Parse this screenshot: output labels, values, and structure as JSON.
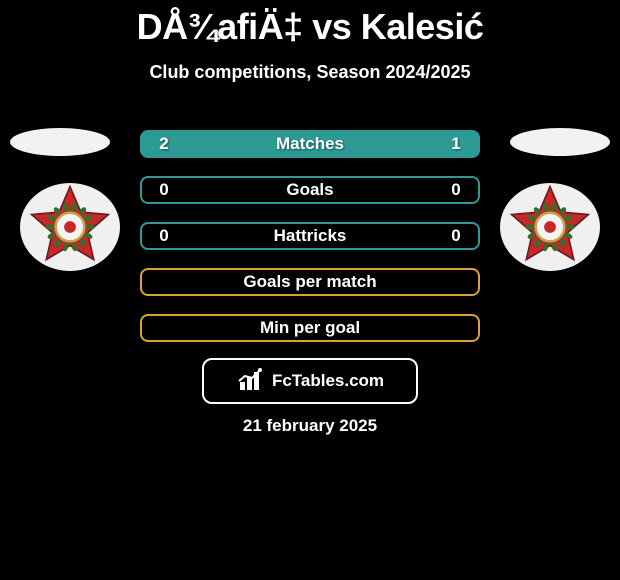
{
  "title": "DÅ¾afiÄ‡ vs Kalesić",
  "subtitle": "Club competitions, Season 2024/2025",
  "flag_color": "#f2f2f2",
  "badge": {
    "bg_color": "#f0f0f0",
    "star_fill": "#c62828",
    "star_stroke": "#6b1d1d",
    "leaf_color": "#3a6b2a",
    "center_white": "#f4f4f4",
    "center_ring": "#c9a54a"
  },
  "rows": [
    {
      "left": "2",
      "label": "Matches",
      "right": "1",
      "fill": "#2e9a96",
      "border": "#2e9a96"
    },
    {
      "left": "0",
      "label": "Goals",
      "right": "0",
      "fill": "transparent",
      "border": "#2e9a96"
    },
    {
      "left": "0",
      "label": "Hattricks",
      "right": "0",
      "fill": "transparent",
      "border": "#2e9a96"
    },
    {
      "left": "",
      "label": "Goals per match",
      "right": "",
      "fill": "transparent",
      "border": "#d4a531"
    },
    {
      "left": "",
      "label": "Min per goal",
      "right": "",
      "fill": "transparent",
      "border": "#d4a531"
    }
  ],
  "logo_text": "FcTables.com",
  "date": "21 february 2025"
}
